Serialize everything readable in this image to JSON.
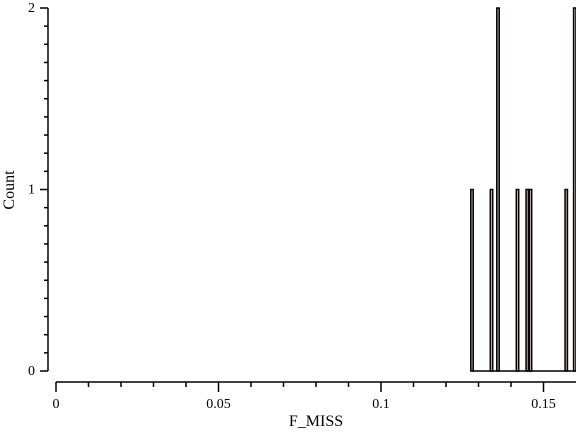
{
  "chart_data": {
    "type": "bar",
    "title": "",
    "xlabel": "F_MISS",
    "ylabel": "Count",
    "xlim": [
      0,
      0.16
    ],
    "ylim": [
      0,
      2
    ],
    "x_ticks": [
      "0",
      "0.05",
      "0.1",
      "0.15"
    ],
    "y_ticks": [
      "0",
      "1",
      "2"
    ],
    "bar_color": "#d7b6b6",
    "line_color": "#000000",
    "x": [
      0.128,
      0.134,
      0.136,
      0.142,
      0.145,
      0.146,
      0.157,
      0.16
    ],
    "values": [
      1,
      1,
      2,
      1,
      1,
      1,
      1,
      2
    ],
    "grid": false,
    "legend": false
  }
}
